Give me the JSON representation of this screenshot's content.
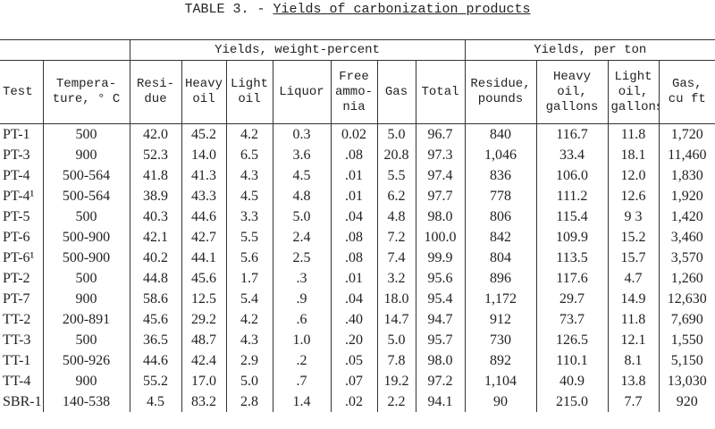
{
  "title": {
    "prefix": "TABLE 3. -",
    "text": "Yields of carbonization products"
  },
  "table": {
    "groups": [
      "Yields, weight-percent",
      "Yields, per ton"
    ],
    "columns": [
      "Test",
      "Tempera-\nture, ° C",
      "Resi-\ndue",
      "Heavy\noil",
      "Light\noil",
      "Liquor",
      "Free\nammo-\nnia",
      "Gas",
      "Total",
      "Residue,\npounds",
      "Heavy\noil,\ngallons",
      "Light\noil,\ngallons",
      "Gas,\ncu ft"
    ],
    "rows": [
      [
        "PT-1",
        "500",
        "42.0",
        "45.2",
        "4.2",
        "0.3",
        "0.02",
        "5.0",
        "96.7",
        "840",
        "116.7",
        "11.8",
        "1,720"
      ],
      [
        "PT-3",
        "900",
        "52.3",
        "14.0",
        "6.5",
        "3.6",
        ".08",
        "20.8",
        "97.3",
        "1,046",
        "33.4",
        "18.1",
        "11,460"
      ],
      [
        "PT-4",
        "500-564",
        "41.8",
        "41.3",
        "4.3",
        "4.5",
        ".01",
        "5.5",
        "97.4",
        "836",
        "106.0",
        "12.0",
        "1,830"
      ],
      [
        "PT-4¹",
        "500-564",
        "38.9",
        "43.3",
        "4.5",
        "4.8",
        ".01",
        "6.2",
        "97.7",
        "778",
        "111.2",
        "12.6",
        "1,920"
      ],
      [
        "PT-5",
        "500",
        "40.3",
        "44.6",
        "3.3",
        "5.0",
        ".04",
        "4.8",
        "98.0",
        "806",
        "115.4",
        "9 3",
        "1,420"
      ],
      [
        "PT-6",
        "500-900",
        "42.1",
        "42.7",
        "5.5",
        "2.4",
        ".08",
        "7.2",
        "100.0",
        "842",
        "109.9",
        "15.2",
        "3,460"
      ],
      [
        "PT-6¹",
        "500-900",
        "40.2",
        "44.1",
        "5.6",
        "2.5",
        ".08",
        "7.4",
        "99.9",
        "804",
        "113.5",
        "15.7",
        "3,570"
      ],
      [
        "PT-2",
        "500",
        "44.8",
        "45.6",
        "1.7",
        ".3",
        ".01",
        "3.2",
        "95.6",
        "896",
        "117.6",
        "4.7",
        "1,260"
      ],
      [
        "PT-7",
        "900",
        "58.6",
        "12.5",
        "5.4",
        ".9",
        ".04",
        "18.0",
        "95.4",
        "1,172",
        "29.7",
        "14.9",
        "12,630"
      ],
      [
        "TT-2",
        "200-891",
        "45.6",
        "29.2",
        "4.2",
        ".6",
        ".40",
        "14.7",
        "94.7",
        "912",
        "73.7",
        "11.8",
        "7,690"
      ],
      [
        "TT-3",
        "500",
        "36.5",
        "48.7",
        "4.3",
        "1.0",
        ".20",
        "5.0",
        "95.7",
        "730",
        "126.5",
        "12.1",
        "1,550"
      ],
      [
        "TT-1",
        "500-926",
        "44.6",
        "42.4",
        "2.9",
        ".2",
        ".05",
        "7.8",
        "98.0",
        "892",
        "110.1",
        "8.1",
        "5,150"
      ],
      [
        "TT-4",
        "900",
        "55.2",
        "17.0",
        "5.0",
        ".7",
        ".07",
        "19.2",
        "97.2",
        "1,104",
        "40.9",
        "13.8",
        "13,030"
      ],
      [
        "SBR-1",
        "140-538",
        "4.5",
        "83.2",
        "2.8",
        "1.4",
        ".02",
        "2.2",
        "94.1",
        "90",
        "215.0",
        "7.7",
        "920"
      ]
    ]
  }
}
